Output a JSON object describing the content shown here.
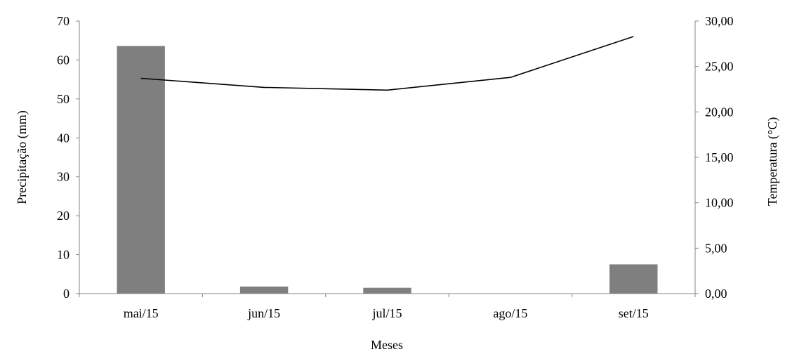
{
  "chart_data": {
    "type": "bar",
    "categories": [
      "mai/15",
      "jun/15",
      "jul/15",
      "ago/15",
      "set/15"
    ],
    "series": [
      {
        "type": "bar",
        "y_axis": "primary",
        "values": [
          63.6,
          1.8,
          1.5,
          0,
          7.5
        ],
        "color": "#7f7f7f"
      },
      {
        "type": "line",
        "y_axis": "secondary",
        "values": [
          23.7,
          22.7,
          22.4,
          23.8,
          28.3
        ],
        "color": "#000000"
      }
    ],
    "xlabel": "Meses",
    "ylabel": "Precipitação (mm)",
    "y2label": "Temperatura (°C)",
    "ylim": [
      0,
      70
    ],
    "y2lim": [
      0,
      30
    ],
    "yticks": [
      0,
      10,
      20,
      30,
      40,
      50,
      60,
      70
    ],
    "ytick_labels": [
      "0",
      "10",
      "20",
      "30",
      "40",
      "50",
      "60",
      "70"
    ],
    "y2ticks": [
      0,
      5,
      10,
      15,
      20,
      25,
      30
    ],
    "y2tick_labels": [
      "0,00",
      "5,00",
      "10,00",
      "15,00",
      "20,00",
      "25,00",
      "30,00"
    ],
    "grid": false,
    "legend": false,
    "axis_color": "#868686"
  }
}
